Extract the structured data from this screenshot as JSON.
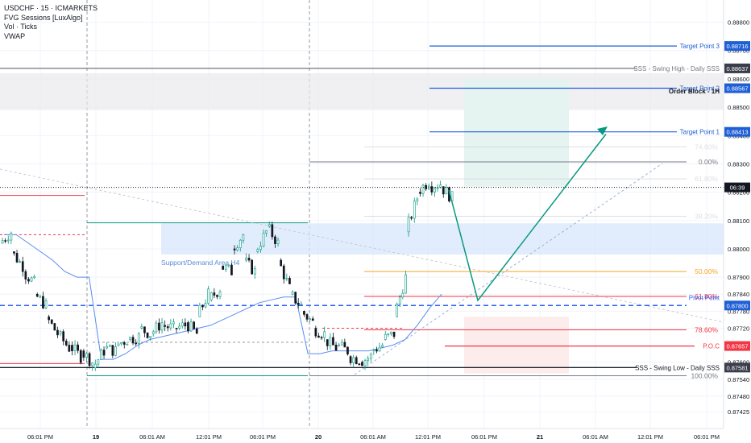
{
  "legend": {
    "symbol_line": "USDCHF · 15 · ICMARKETS",
    "indicator_1": "FVG Sessions [LuxAlgo]",
    "indicator_2": "Vol · Ticks",
    "indicator_3": "VWAP"
  },
  "colors": {
    "up": "#089981",
    "down": "#131722",
    "blue": "#2962ff",
    "vwap": "#5b8def",
    "green": "#089981",
    "red": "#f23645",
    "orange": "#f5a623",
    "grid": "#f0f3fa"
  },
  "chart_data": {
    "type": "candlestick",
    "y_axis": {
      "ylim": [
        0.874,
        0.8884
      ],
      "ticks": [
        "0.88800",
        "0.88700",
        "0.88600",
        "0.88500",
        "0.88400",
        "0.88300",
        "0.88200",
        "0.88100",
        "0.88000",
        "0.87900",
        "0.87840",
        "0.87780",
        "0.87720",
        "0.87600",
        "0.87540",
        "0.87480",
        "0.87425"
      ]
    },
    "x_axis": {
      "ticks": [
        {
          "label": "06:01 PM",
          "bold": false
        },
        {
          "label": "19",
          "bold": true
        },
        {
          "label": "06:01 AM",
          "bold": false
        },
        {
          "label": "12:01 PM",
          "bold": false
        },
        {
          "label": "06:01 PM",
          "bold": false
        },
        {
          "label": "20",
          "bold": true
        },
        {
          "label": "06:01 AM",
          "bold": false
        },
        {
          "label": "12:01 PM",
          "bold": false
        },
        {
          "label": "06:01 PM",
          "bold": false
        },
        {
          "label": "21",
          "bold": true
        },
        {
          "label": "06:01 AM",
          "bold": false
        },
        {
          "label": "12:01 PM",
          "bold": false
        },
        {
          "label": "06:01 PM",
          "bold": false
        }
      ]
    },
    "price_path": [
      [
        0.8802,
        0.8806
      ],
      [
        0.8799,
        0.8794
      ],
      [
        0.8792,
        0.8788
      ],
      [
        0.8784,
        0.878
      ],
      [
        0.8776,
        0.877
      ],
      [
        0.877,
        0.8765
      ],
      [
        0.8766,
        0.8762
      ],
      [
        0.8764,
        0.876
      ],
      [
        0.8758,
        0.8764
      ],
      [
        0.8765,
        0.8764
      ],
      [
        0.8766,
        0.8768
      ],
      [
        0.8768,
        0.8769
      ],
      [
        0.8772,
        0.877
      ],
      [
        0.877,
        0.8774
      ],
      [
        0.8773,
        0.8772
      ],
      [
        0.8772,
        0.8773
      ],
      [
        0.8774,
        0.877
      ],
      [
        0.8776,
        0.8784
      ],
      [
        0.8782,
        0.8786
      ],
      [
        0.8794,
        0.8792
      ],
      [
        0.88,
        0.8805
      ],
      [
        0.8796,
        0.8792
      ],
      [
        0.8799,
        0.8806
      ],
      [
        0.8808,
        0.8802
      ],
      [
        0.8796,
        0.8786
      ],
      [
        0.8784,
        0.878
      ],
      [
        0.8778,
        0.8774
      ],
      [
        0.8772,
        0.877
      ],
      [
        0.8768,
        0.8765
      ],
      [
        0.8766,
        0.8764
      ],
      [
        0.8762,
        0.8761
      ],
      [
        0.876,
        0.8762
      ],
      [
        0.8764,
        0.8766
      ],
      [
        0.8768,
        0.877
      ],
      [
        0.8776,
        0.879
      ],
      [
        0.8806,
        0.8818
      ],
      [
        0.882,
        0.8824
      ],
      [
        0.8822,
        0.8823
      ],
      [
        0.8822,
        0.8818
      ]
    ],
    "vwap_path": [
      [
        0.8805
      ],
      [
        0.8805
      ],
      [
        0.8802
      ],
      [
        0.8799
      ],
      [
        0.8796
      ],
      [
        0.8792
      ],
      [
        0.879
      ],
      [
        0.879
      ],
      [
        0.8761
      ],
      [
        0.8761
      ],
      [
        0.8763
      ],
      [
        0.8766
      ],
      [
        0.8768
      ],
      [
        0.8769
      ],
      [
        0.877
      ],
      [
        0.8771
      ],
      [
        0.8772
      ],
      [
        0.8773
      ],
      [
        0.8775
      ],
      [
        0.8777
      ],
      [
        0.8779
      ],
      [
        0.8781
      ],
      [
        0.8782
      ],
      [
        0.8783
      ],
      [
        0.8783
      ],
      [
        0.8763
      ],
      [
        0.8763
      ],
      [
        0.8764
      ],
      [
        0.8764
      ],
      [
        0.8764
      ],
      [
        0.8764
      ],
      [
        0.8765
      ],
      [
        0.8766
      ],
      [
        0.8768
      ],
      [
        0.8773
      ],
      [
        0.8779
      ],
      [
        0.8784
      ]
    ],
    "last_price": {
      "value": 0.88217,
      "tag": "06:39"
    },
    "levels": [
      {
        "name": "Target Point 3",
        "value": 0.88716,
        "tag": "0.88716",
        "color": "#1f5fd6"
      },
      {
        "name": "SSS - Swing High - Daily SSS",
        "value": 0.88637,
        "tag": "0.88637",
        "color": "#787b86"
      },
      {
        "name": "Target Point 2",
        "value": 0.88567,
        "tag": "0.88567",
        "color": "#1f5fd6"
      },
      {
        "name": "Order Block - 1H",
        "value": 0.8856,
        "tag": "",
        "color": "#131722"
      },
      {
        "name": "Target Point 1",
        "value": 0.88413,
        "tag": "0.88413",
        "color": "#1f5fd6"
      },
      {
        "name": "Pivot Point",
        "value": 0.878,
        "tag": "0.87800",
        "color": "#2962ff"
      },
      {
        "name": "P.O.C",
        "value": 0.87657,
        "tag": "0.87657",
        "color": "#f23645"
      },
      {
        "name": "SSS - Swing Low - Daily SSS",
        "value": 0.87581,
        "tag": "0.87581",
        "color": "#131722"
      }
    ],
    "fib_levels": [
      {
        "label": "0.00%",
        "value": 0.88307
      },
      {
        "label": "74.60%",
        "value": 0.8836
      },
      {
        "label": "61.80%",
        "value": 0.88247
      },
      {
        "label": "38.20%",
        "value": 0.88115
      },
      {
        "label": "50.00%",
        "value": 0.8792
      },
      {
        "label": "61.80%",
        "value": 0.87832
      },
      {
        "label": "78.60%",
        "value": 0.87714
      },
      {
        "label": "100.00%",
        "value": 0.87552
      }
    ],
    "zones": {
      "support_demand_label": "Support/Demand Area H4",
      "support_demand_range": [
        0.8809,
        0.8798
      ],
      "order_block_range": [
        0.8862,
        0.8849
      ],
      "take_profit_range": [
        0.886,
        0.8822
      ],
      "stop_loss_range": [
        0.8776,
        0.8756
      ]
    },
    "projection": {
      "path": [
        0.88208,
        0.87818,
        0.88405
      ]
    }
  }
}
